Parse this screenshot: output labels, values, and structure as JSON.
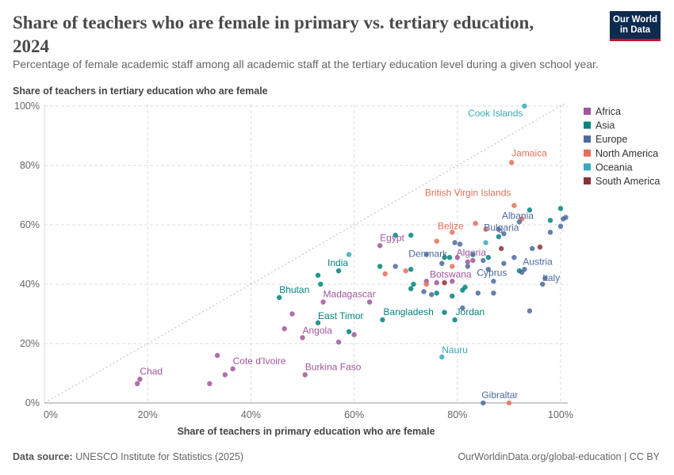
{
  "header": {
    "title": "Share of teachers who are female in primary vs. tertiary education, 2024",
    "subtitle": "Percentage of female academic staff among all academic staff at the tertiary education level during a given school year.",
    "logo_line1": "Our World",
    "logo_line2": "in Data"
  },
  "footer": {
    "source_label": "Data source:",
    "source_text": "UNESCO Institute for Statistics (2025)",
    "url": "OurWorldinData.org/global-education | CC BY"
  },
  "colors": {
    "Africa": "#a2559c",
    "Asia": "#00847e",
    "Europe": "#4c6a9c",
    "North America": "#e56e5a",
    "Oceania": "#38aaba",
    "South America": "#883039"
  },
  "chart_data": {
    "type": "scatter",
    "xlabel": "Share of teachers in primary education who are female",
    "ylabel": "Share of teachers in tertiary education who are female",
    "xlim": [
      0,
      101
    ],
    "ylim": [
      0,
      100
    ],
    "x_ticks": [
      "0%",
      "20%",
      "40%",
      "60%",
      "80%",
      "100%"
    ],
    "y_ticks": [
      "0%",
      "20%",
      "40%",
      "60%",
      "80%",
      "100%"
    ],
    "grid": true,
    "diagonal_reference_line": true,
    "legend": [
      "Africa",
      "Asia",
      "Europe",
      "North America",
      "Oceania",
      "South America"
    ],
    "legend_position": "right",
    "labeled_points": [
      {
        "label": "Cook Islands",
        "region": "Oceania",
        "x": 93,
        "y": 100
      },
      {
        "label": "Jamaica",
        "region": "North America",
        "x": 90.5,
        "y": 81
      },
      {
        "label": "British Virgin Islands",
        "region": "North America",
        "x": 91,
        "y": 66.5
      },
      {
        "label": "Albania",
        "region": "Europe",
        "x": 92,
        "y": 61
      },
      {
        "label": "Belize",
        "region": "North America",
        "x": 79,
        "y": 57.5
      },
      {
        "label": "Bulgaria",
        "region": "Europe",
        "x": 89,
        "y": 57
      },
      {
        "label": "Egypt",
        "region": "Africa",
        "x": 65,
        "y": 53
      },
      {
        "label": "Algeria",
        "region": "Africa",
        "x": 83,
        "y": 48
      },
      {
        "label": "Denmark",
        "region": "Europe",
        "x": 74,
        "y": 50
      },
      {
        "label": "Austria",
        "region": "Europe",
        "x": 93,
        "y": 45
      },
      {
        "label": "India",
        "region": "Asia",
        "x": 57,
        "y": 44.5
      },
      {
        "label": "Botswana",
        "region": "Africa",
        "x": 79,
        "y": 41
      },
      {
        "label": "Cyprus",
        "region": "Europe",
        "x": 87,
        "y": 41
      },
      {
        "label": "Italy",
        "region": "Europe",
        "x": 96.5,
        "y": 40
      },
      {
        "label": "Bhutan",
        "region": "Asia",
        "x": 45.5,
        "y": 35.5
      },
      {
        "label": "Madagascar",
        "region": "Africa",
        "x": 54,
        "y": 34
      },
      {
        "label": "Bangladesh",
        "region": "Asia",
        "x": 65.5,
        "y": 28
      },
      {
        "label": "Jordan",
        "region": "Asia",
        "x": 79.5,
        "y": 28
      },
      {
        "label": "East Timor",
        "region": "Asia",
        "x": 53,
        "y": 27
      },
      {
        "label": "Angola",
        "region": "Africa",
        "x": 50,
        "y": 22
      },
      {
        "label": "Nauru",
        "region": "Oceania",
        "x": 77,
        "y": 15.5
      },
      {
        "label": "Cote d'Ivoire",
        "region": "Africa",
        "x": 36.5,
        "y": 11.5
      },
      {
        "label": "Burkina Faso",
        "region": "Africa",
        "x": 50.5,
        "y": 9.5
      },
      {
        "label": "Chad",
        "region": "Africa",
        "x": 18.5,
        "y": 8
      },
      {
        "label": "Gibraltar",
        "region": "Europe",
        "x": 85,
        "y": 0
      }
    ],
    "unlabeled_points": [
      {
        "region": "Africa",
        "x": 18,
        "y": 6.5
      },
      {
        "region": "Africa",
        "x": 32,
        "y": 6.5
      },
      {
        "region": "Africa",
        "x": 33.5,
        "y": 16
      },
      {
        "region": "Africa",
        "x": 35,
        "y": 9.5
      },
      {
        "region": "Africa",
        "x": 46.5,
        "y": 25
      },
      {
        "region": "Africa",
        "x": 48,
        "y": 30
      },
      {
        "region": "Africa",
        "x": 57,
        "y": 20.5
      },
      {
        "region": "Africa",
        "x": 60,
        "y": 23
      },
      {
        "region": "Africa",
        "x": 63,
        "y": 34
      },
      {
        "region": "Africa",
        "x": 74,
        "y": 41
      },
      {
        "region": "Africa",
        "x": 80,
        "y": 49
      },
      {
        "region": "Africa",
        "x": 82,
        "y": 47.5
      },
      {
        "region": "Africa",
        "x": 76,
        "y": 40.5
      },
      {
        "region": "Asia",
        "x": 53,
        "y": 43
      },
      {
        "region": "Asia",
        "x": 53.5,
        "y": 40
      },
      {
        "region": "Asia",
        "x": 59,
        "y": 24
      },
      {
        "region": "Asia",
        "x": 65,
        "y": 46
      },
      {
        "region": "Asia",
        "x": 68,
        "y": 56.5
      },
      {
        "region": "Asia",
        "x": 71,
        "y": 56.5
      },
      {
        "region": "Asia",
        "x": 71,
        "y": 45
      },
      {
        "region": "Asia",
        "x": 71.5,
        "y": 40
      },
      {
        "region": "Asia",
        "x": 71,
        "y": 38.5
      },
      {
        "region": "Asia",
        "x": 76,
        "y": 37
      },
      {
        "region": "Asia",
        "x": 77.5,
        "y": 49
      },
      {
        "region": "Asia",
        "x": 78.5,
        "y": 49
      },
      {
        "region": "Asia",
        "x": 79,
        "y": 36
      },
      {
        "region": "Asia",
        "x": 77.5,
        "y": 30.5
      },
      {
        "region": "Asia",
        "x": 81,
        "y": 38
      },
      {
        "region": "Asia",
        "x": 81.5,
        "y": 39
      },
      {
        "region": "Asia",
        "x": 83,
        "y": 50
      },
      {
        "region": "Asia",
        "x": 86,
        "y": 49
      },
      {
        "region": "Asia",
        "x": 88,
        "y": 56
      },
      {
        "region": "Asia",
        "x": 92,
        "y": 44.5
      },
      {
        "region": "Asia",
        "x": 94,
        "y": 65
      },
      {
        "region": "Asia",
        "x": 98,
        "y": 61.5
      },
      {
        "region": "Asia",
        "x": 100,
        "y": 65.5
      },
      {
        "region": "Europe",
        "x": 68,
        "y": 46
      },
      {
        "region": "Europe",
        "x": 73.5,
        "y": 37.5
      },
      {
        "region": "Europe",
        "x": 75,
        "y": 36.5
      },
      {
        "region": "Europe",
        "x": 77,
        "y": 47
      },
      {
        "region": "Europe",
        "x": 79.5,
        "y": 54
      },
      {
        "region": "Europe",
        "x": 80.5,
        "y": 53.5
      },
      {
        "region": "Europe",
        "x": 81,
        "y": 32
      },
      {
        "region": "Europe",
        "x": 82,
        "y": 46
      },
      {
        "region": "Europe",
        "x": 84,
        "y": 37
      },
      {
        "region": "Europe",
        "x": 85,
        "y": 48
      },
      {
        "region": "Europe",
        "x": 86,
        "y": 45
      },
      {
        "region": "Europe",
        "x": 87,
        "y": 37
      },
      {
        "region": "Europe",
        "x": 88,
        "y": 58.5
      },
      {
        "region": "Europe",
        "x": 89,
        "y": 47
      },
      {
        "region": "Europe",
        "x": 91,
        "y": 49
      },
      {
        "region": "Europe",
        "x": 92.5,
        "y": 44
      },
      {
        "region": "Europe",
        "x": 94,
        "y": 31
      },
      {
        "region": "Europe",
        "x": 94.5,
        "y": 52
      },
      {
        "region": "Europe",
        "x": 97,
        "y": 42
      },
      {
        "region": "Europe",
        "x": 98,
        "y": 57.5
      },
      {
        "region": "Europe",
        "x": 100,
        "y": 59.5
      },
      {
        "region": "Europe",
        "x": 100.5,
        "y": 62
      },
      {
        "region": "Europe",
        "x": 101,
        "y": 62.5
      },
      {
        "region": "North America",
        "x": 66,
        "y": 43.5
      },
      {
        "region": "North America",
        "x": 70,
        "y": 44.5
      },
      {
        "region": "North America",
        "x": 76,
        "y": 54.5
      },
      {
        "region": "North America",
        "x": 79,
        "y": 46
      },
      {
        "region": "North America",
        "x": 83.5,
        "y": 60.5
      },
      {
        "region": "North America",
        "x": 85.5,
        "y": 58.5
      },
      {
        "region": "North America",
        "x": 92.5,
        "y": 62
      },
      {
        "region": "North America",
        "x": 90,
        "y": 0
      },
      {
        "region": "North America",
        "x": 74,
        "y": 40
      },
      {
        "region": "Oceania",
        "x": 59,
        "y": 50
      },
      {
        "region": "Oceania",
        "x": 85.5,
        "y": 54
      },
      {
        "region": "South America",
        "x": 77.5,
        "y": 40.5
      },
      {
        "region": "South America",
        "x": 88.5,
        "y": 52
      },
      {
        "region": "South America",
        "x": 96,
        "y": 52.5
      }
    ]
  }
}
